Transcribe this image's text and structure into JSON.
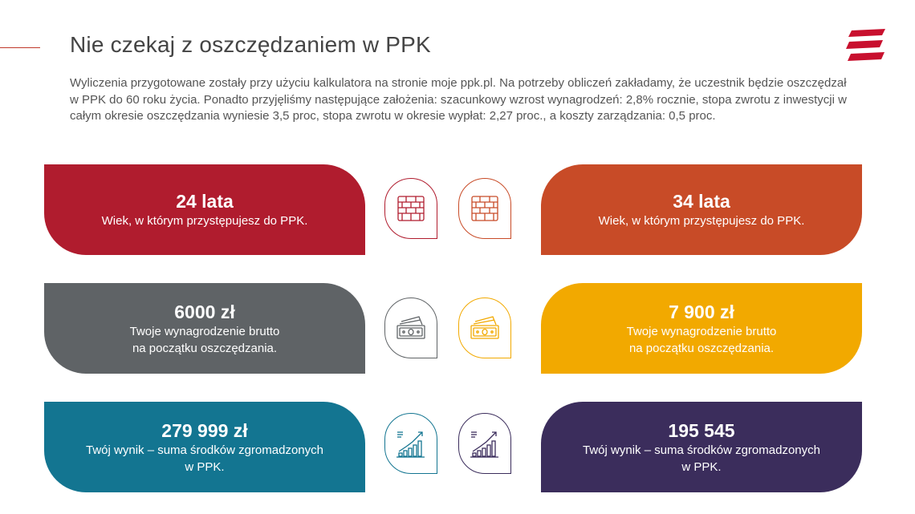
{
  "title": "Nie czekaj z oszczędzaniem w PPK",
  "description": "Wyliczenia przygotowane zostały przy użyciu kalkulatora na stronie moje ppk.pl. Na potrzeby obliczeń zakładamy, że uczestnik będzie oszczędzał w PPK do 60 roku życia. Ponadto przyjęliśmy następujące założenia: szacunkowy wzrost wynagrodzeń: 2,8% rocznie, stopa zwrotu z inwestycji w całym okresie oszczędzania wyniesie 3,5 proc, stopa zwrotu w okresie wypłat: 2,27 proc., a koszty zarządzania: 0,5 proc.",
  "colors": {
    "red": "#b01c2e",
    "orange": "#c84b27",
    "gray": "#5f6366",
    "yellow": "#f2a900",
    "teal": "#137591",
    "purple": "#3b2d5c"
  },
  "rows": [
    {
      "left": {
        "value": "24 lata",
        "label": "Wiek, w którym przystępujesz do PPK.",
        "color": "#b01c2e"
      },
      "right": {
        "value": "34 lata",
        "label": "Wiek, w którym przystępujesz do PPK.",
        "color": "#c84b27"
      },
      "icon": "brick-wall-icon",
      "icon_colors": [
        "#b01c2e",
        "#c84b27"
      ]
    },
    {
      "left": {
        "value": "6000 zł",
        "label": "Twoje wynagrodzenie brutto\nna początku oszczędzania.",
        "color": "#5f6366"
      },
      "right": {
        "value": "7 900 zł",
        "label": "Twoje wynagrodzenie brutto\nna początku oszczędzania.",
        "color": "#f2a900"
      },
      "icon": "banknote-icon",
      "icon_colors": [
        "#5f6366",
        "#f2a900"
      ]
    },
    {
      "left": {
        "value": "279 999 zł",
        "label": "Twój wynik – suma środków zgromadzonych\nw PPK.",
        "color": "#137591"
      },
      "right": {
        "value": "195 545",
        "label": "Twój wynik – suma środków zgromadzonych\nw PPK.",
        "color": "#3b2d5c"
      },
      "icon": "growth-chart-icon",
      "icon_colors": [
        "#137591",
        "#3b2d5c"
      ]
    }
  ]
}
